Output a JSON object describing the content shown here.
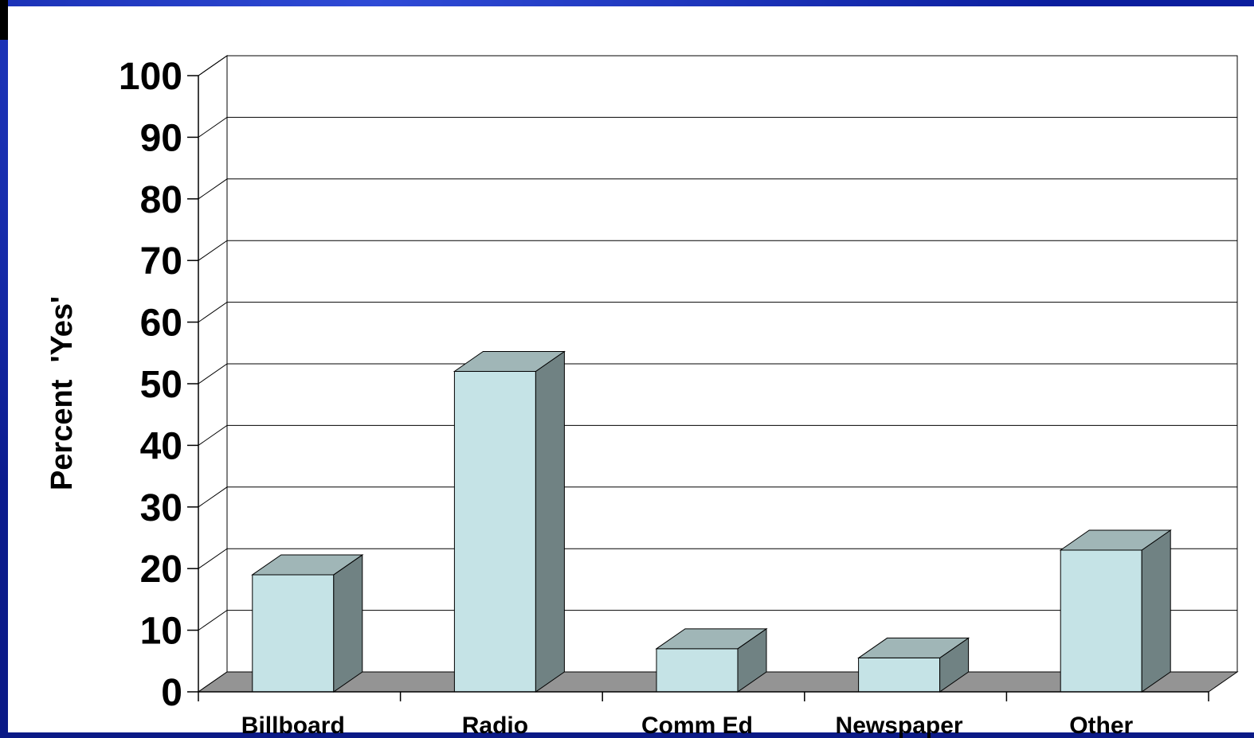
{
  "chart_data": {
    "type": "bar",
    "style": "3d-column",
    "title": "",
    "xlabel": "",
    "ylabel": "Percent  'Yes'",
    "ylim": [
      0,
      100
    ],
    "yticks": [
      0,
      10,
      20,
      30,
      40,
      50,
      60,
      70,
      80,
      90,
      100
    ],
    "grid": true,
    "legend": "none",
    "categories": [
      "Billboard",
      "Radio",
      "Comm Ed",
      "Newspaper",
      "Other"
    ],
    "values": [
      19,
      52,
      7,
      5.5,
      23
    ],
    "colors": {
      "bar_front": "#c5e3e6",
      "bar_top": "#a0b6b7",
      "bar_side": "#708283",
      "floor": "#949494",
      "background_slide": "#0b1e9e"
    }
  }
}
